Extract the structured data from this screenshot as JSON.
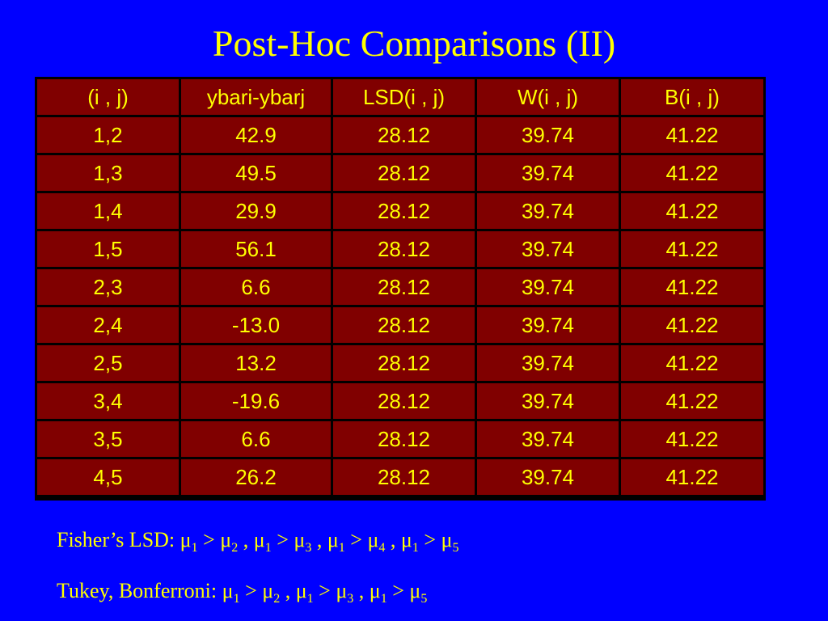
{
  "slide": {
    "title": "Post-Hoc Comparisons (II)"
  },
  "table": {
    "headers": [
      "(i , j)",
      "ybari-ybarj",
      "LSD(i , j)",
      "W(i , j)",
      "B(i , j)"
    ],
    "rows": [
      [
        "1,2",
        "42.9",
        "28.12",
        "39.74",
        "41.22"
      ],
      [
        "1,3",
        "49.5",
        "28.12",
        "39.74",
        "41.22"
      ],
      [
        "1,4",
        "29.9",
        "28.12",
        "39.74",
        "41.22"
      ],
      [
        "1,5",
        "56.1",
        "28.12",
        "39.74",
        "41.22"
      ],
      [
        "2,3",
        "6.6",
        "28.12",
        "39.74",
        "41.22"
      ],
      [
        "2,4",
        "-13.0",
        "28.12",
        "39.74",
        "41.22"
      ],
      [
        "2,5",
        "13.2",
        "28.12",
        "39.74",
        "41.22"
      ],
      [
        "3,4",
        "-19.6",
        "28.12",
        "39.74",
        "41.22"
      ],
      [
        "3,5",
        "6.6",
        "28.12",
        "39.74",
        "41.22"
      ],
      [
        "4,5",
        "26.2",
        "28.12",
        "39.74",
        "41.22"
      ]
    ]
  },
  "notes": [
    {
      "label": "Fisher’s LSD: ",
      "comparisons": [
        {
          "a": "1",
          "b": "2"
        },
        {
          "a": "1",
          "b": "3"
        },
        {
          "a": "1",
          "b": "4"
        },
        {
          "a": "1",
          "b": "5"
        }
      ]
    },
    {
      "label": "Tukey, Bonferroni: ",
      "comparisons": [
        {
          "a": "1",
          "b": "2"
        },
        {
          "a": "1",
          "b": "3"
        },
        {
          "a": "1",
          "b": "5"
        }
      ]
    }
  ],
  "symbols": {
    "mu": "μ",
    "greater": " > ",
    "separator": " , "
  },
  "colors": {
    "background": "#0000ff",
    "text": "#ffff00",
    "cell": "#800000",
    "grid": "#000000"
  }
}
